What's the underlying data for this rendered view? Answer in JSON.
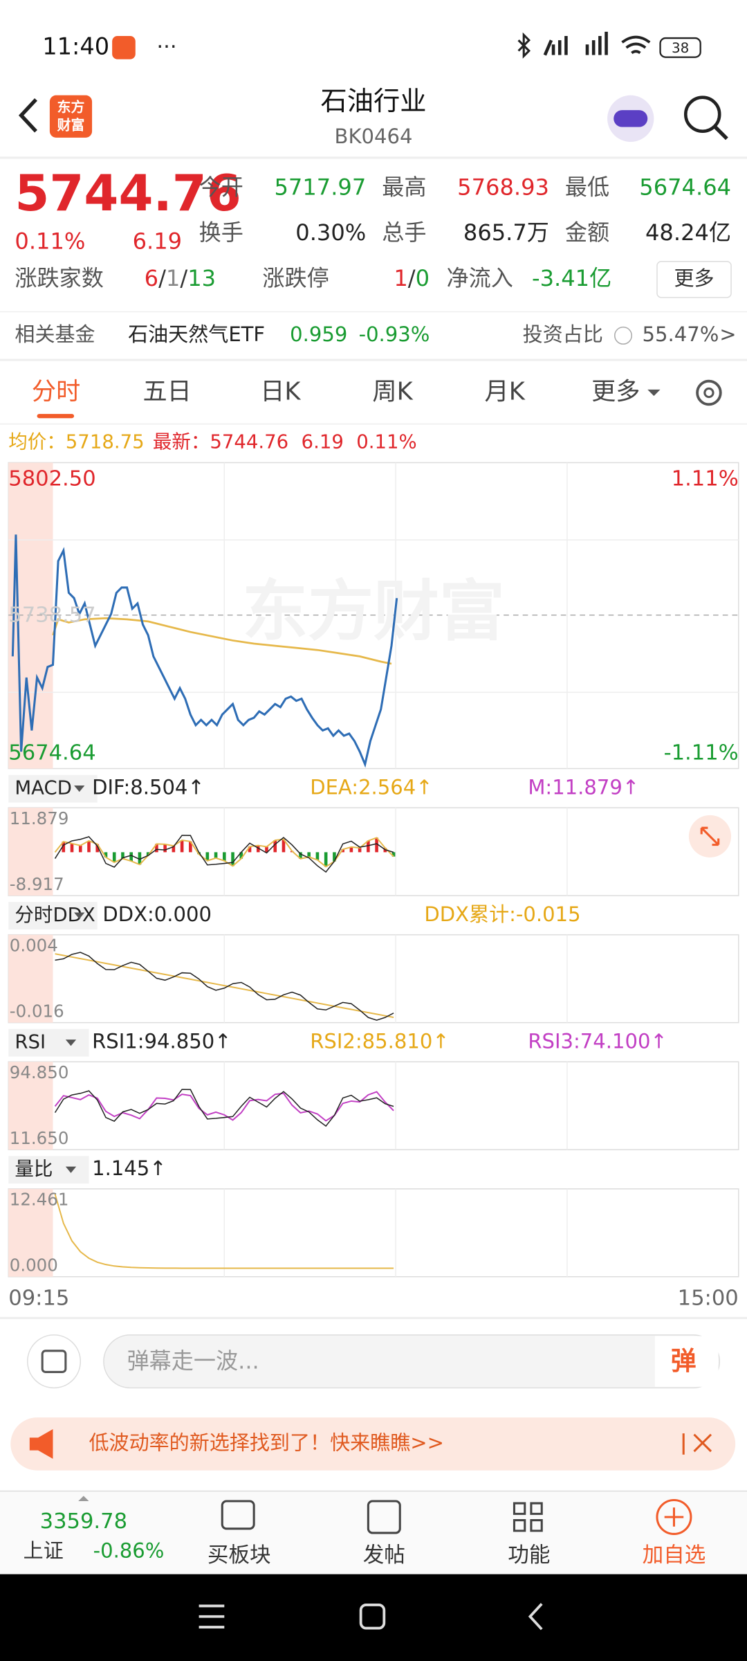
{
  "status_bar": {
    "time": "11:40",
    "battery": "38"
  },
  "header": {
    "logo": [
      "东方",
      "财富"
    ],
    "title": "石油行业",
    "code": "BK0464"
  },
  "quote": {
    "price": "5744.76",
    "change_pct": "0.11%",
    "change": "6.19",
    "stats": [
      {
        "label": "今开",
        "value": "5717.97"
      },
      {
        "label": "最高",
        "value": "5768.93"
      },
      {
        "label": "最低",
        "value": "5674.64"
      },
      {
        "label": "换手",
        "value": "0.30%"
      },
      {
        "label": "总手",
        "value": "865.7万"
      },
      {
        "label": "金额",
        "value": "48.24亿"
      }
    ],
    "breadth_label": "涨跌家数",
    "breadth": [
      "6",
      "/",
      "1",
      "/",
      "13"
    ],
    "limit_label": "涨跌停",
    "limit": [
      "1",
      "/",
      "0"
    ],
    "inflow_label": "净流入",
    "inflow": "-3.41亿",
    "more": "更多"
  },
  "fund": {
    "label": "相关基金",
    "name": "石油天然气ETF",
    "price": "0.959",
    "change": "-0.93%",
    "ratio_label": "投资占比",
    "ratio": "55.47%",
    "arrow": ">"
  },
  "tabs": [
    "分时",
    "五日",
    "日K",
    "周K",
    "月K",
    "更多"
  ],
  "chart": {
    "avg_label": "均价：",
    "avg": "5718.75",
    "last_label": "最新：",
    "last": "5744.76",
    "change": "6.19",
    "change_pct": "0.11%",
    "top": "5802.50",
    "top_pct": "1.11%",
    "mid": "5738.57",
    "bottom": "5674.64",
    "bottom_pct": "-1.11%",
    "watermark": "东方财富",
    "start_time": "09:15",
    "end_time": "15:00"
  },
  "indicators": [
    {
      "name": "MACD",
      "values": [
        "DIF:8.504↑",
        "DEA:2.564↑",
        "M:11.879↑"
      ],
      "max": "11.879",
      "min": "-8.917"
    },
    {
      "name": "分时DDX",
      "values": [
        "DDX:0.000",
        "DDX累计:-0.015"
      ],
      "max": "0.004",
      "min": "-0.016"
    },
    {
      "name": "RSI",
      "values": [
        "RSI1:94.850↑",
        "RSI2:85.810↑",
        "RSI3:74.100↑"
      ],
      "max": "94.850",
      "min": "11.650"
    },
    {
      "name": "量比",
      "values": [
        "1.145↑"
      ],
      "max": "12.461",
      "min": "0.000"
    }
  ],
  "comment": {
    "placeholder": "弹幕走一波...",
    "button": "弹"
  },
  "banner": "低波动率的新选择找到了！快来瞧瞧>>",
  "bottom_nav": {
    "index_value": "3359.78",
    "index_name": "上证",
    "index_change": "-0.86%",
    "items": [
      "买板块",
      "发帖",
      "功能",
      "加自选"
    ]
  }
}
